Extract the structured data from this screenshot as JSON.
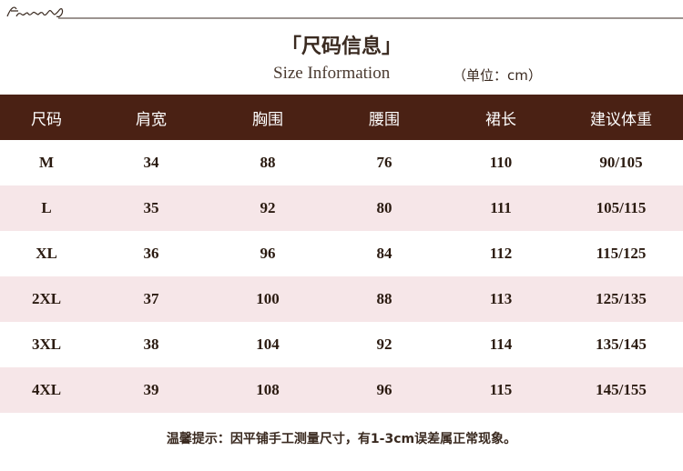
{
  "title": "「尺码信息」",
  "subtitle": "Size Information",
  "unit": "（单位：cm）",
  "columns": [
    "尺码",
    "肩宽",
    "胸围",
    "腰围",
    "裙长",
    "建议体重"
  ],
  "rows": [
    [
      "M",
      "34",
      "88",
      "76",
      "110",
      "90/105"
    ],
    [
      "L",
      "35",
      "92",
      "80",
      "111",
      "105/115"
    ],
    [
      "XL",
      "36",
      "96",
      "84",
      "112",
      "115/125"
    ],
    [
      "2XL",
      "37",
      "100",
      "88",
      "113",
      "125/135"
    ],
    [
      "3XL",
      "38",
      "104",
      "92",
      "114",
      "135/145"
    ],
    [
      "4XL",
      "39",
      "108",
      "96",
      "115",
      "145/155"
    ]
  ],
  "note": "温馨提示：因平铺手工测量尺寸，有1-3cm误差属正常现象。",
  "colors": {
    "header_bg": "#4a2114",
    "alt_row_bg": "#f6e6e8"
  }
}
